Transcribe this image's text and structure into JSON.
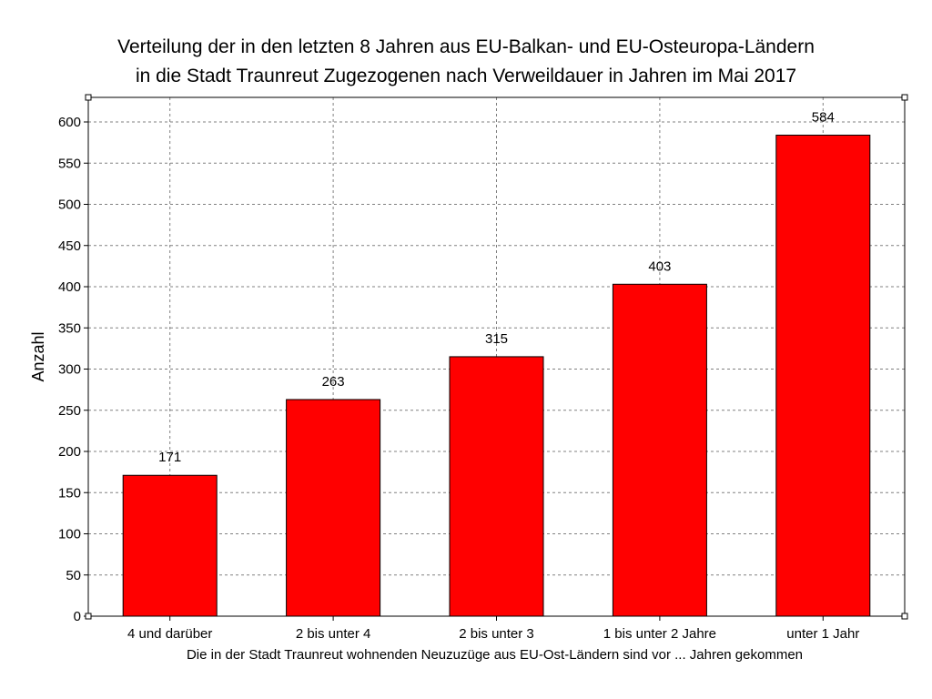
{
  "chart_data": {
    "type": "bar",
    "title_lines": [
      "Verteilung der in den letzten 8 Jahren aus EU-Balkan- und EU-Osteuropa-Ländern",
      "in die Stadt Traunreut Zugezogenen nach Verweildauer in Jahren im Mai 2017"
    ],
    "xlabel": "Die in der Stadt Traunreut wohnenden Neuzuzüge aus EU-Ost-Ländern sind vor ... Jahren gekommen",
    "ylabel": "Anzahl",
    "categories": [
      "4 und darüber",
      "2 bis unter 4",
      "2 bis unter 3",
      "1 bis unter 2 Jahre",
      "unter 1 Jahr"
    ],
    "values": [
      171,
      263,
      315,
      403,
      584
    ],
    "data_labels": [
      "171",
      "263",
      "315",
      "403",
      "584"
    ],
    "ylim": [
      0,
      600
    ],
    "yticks": [
      "0",
      "50",
      "100",
      "150",
      "200",
      "250",
      "300",
      "350",
      "400",
      "450",
      "500",
      "550",
      "600"
    ],
    "grid": true,
    "bar_color": "#ff0000",
    "bar_edge_color": "#000000",
    "grid_color": "#808080"
  }
}
